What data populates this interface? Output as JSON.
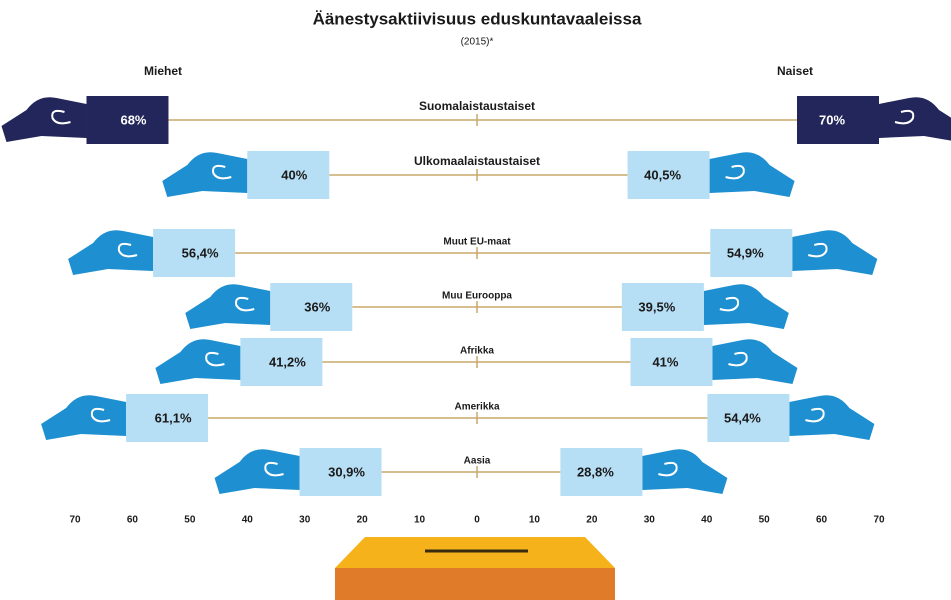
{
  "chart_data": {
    "type": "bar",
    "title": "Äänestysaktiivisuus eduskuntavaaleissa",
    "subtitle": "(2015)*",
    "categories": [
      "Suomalaistaustaiset",
      "Ulkomaalaistaustaiset",
      "Muut EU-maat",
      "Muu Eurooppa",
      "Afrikka",
      "Amerikka",
      "Aasia"
    ],
    "box_colors": [
      "#23265a",
      "#b6def4",
      "#b6def4",
      "#b6def4",
      "#b6def4",
      "#b6def4",
      "#b6def4"
    ],
    "hand_colors": [
      "#23265a",
      "#1e8fd0",
      "#1e8fd0",
      "#1e8fd0",
      "#1e8fd0",
      "#1e8fd0",
      "#1e8fd0"
    ],
    "series": [
      {
        "name": "Miehet",
        "values": [
          68,
          40,
          56.4,
          36,
          41.2,
          61.1,
          30.9
        ],
        "value_labels": [
          "68%",
          "40%",
          "56,4%",
          "36%",
          "41,2%",
          "61,1%",
          "30,9%"
        ]
      },
      {
        "name": "Naiset",
        "values": [
          70,
          40.5,
          54.9,
          39.5,
          41,
          54.4,
          28.8
        ],
        "value_labels": [
          "70%",
          "40,5%",
          "54,9%",
          "39,5%",
          "41%",
          "54,4%",
          "28,8%"
        ]
      }
    ],
    "xlim": [
      -70,
      70
    ],
    "xticks": [
      {
        "value": -70,
        "label": "70"
      },
      {
        "value": -60,
        "label": "60"
      },
      {
        "value": -50,
        "label": "50"
      },
      {
        "value": -40,
        "label": "40"
      },
      {
        "value": -30,
        "label": "30"
      },
      {
        "value": -20,
        "label": "20"
      },
      {
        "value": -10,
        "label": "10"
      },
      0,
      10,
      20,
      30,
      40,
      50,
      60,
      70
    ]
  }
}
